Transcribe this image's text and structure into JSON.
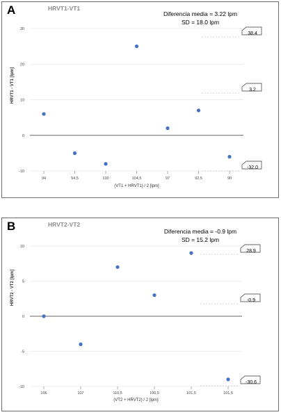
{
  "colors": {
    "point": "#4472c4",
    "grid": "#d9d9d9",
    "zero": "#333333",
    "dash": "#aaaaaa"
  },
  "chart_data": [
    {
      "type": "scatter",
      "panel_letter": "A",
      "title": "HRVT1-VT1",
      "stats": [
        "Diferencia media = 3.22 lpm",
        "SD = 18.0 lpm"
      ],
      "xlabel": "(VT1 + HRVT1) / 2 [lpm]",
      "ylabel": "HRVT1 - VT1 [lpm]",
      "categories": [
        "94",
        "94,5",
        "100",
        "104,5",
        "97",
        "92,5",
        "90"
      ],
      "values": [
        6,
        -5,
        -8,
        25,
        2,
        7,
        -6
      ],
      "ylim": [
        -10,
        30
      ],
      "yticks": [
        -10,
        0,
        10,
        20,
        30
      ],
      "reference_lines": [
        {
          "label": "38.4",
          "value": 38.4
        },
        {
          "label": "3.2",
          "value": 3.2
        },
        {
          "label": "-32.0",
          "value": -32.0
        }
      ],
      "grid": true
    },
    {
      "type": "scatter",
      "panel_letter": "B",
      "title": "HRVT2-VT2",
      "stats": [
        "Diferencia media = -0.9 lpm",
        "SD = 15.2 lpm"
      ],
      "xlabel": "(VT2 + HRVT2) / 2 [lpm]",
      "ylabel": "HRVT2 - VT2 [lpm]",
      "categories": [
        "106",
        "107",
        "110,5",
        "106,5",
        "101,5",
        "101,5"
      ],
      "values": [
        0,
        -4,
        7,
        3,
        9,
        -9
      ],
      "ylim": [
        -10,
        10
      ],
      "yticks": [
        -10,
        -5,
        0,
        5,
        10
      ],
      "reference_lines": [
        {
          "label": "28.9",
          "value": 28.9
        },
        {
          "label": "-0.9",
          "value": -0.9
        },
        {
          "label": "-30.6",
          "value": -30.6
        }
      ],
      "grid": true
    }
  ]
}
